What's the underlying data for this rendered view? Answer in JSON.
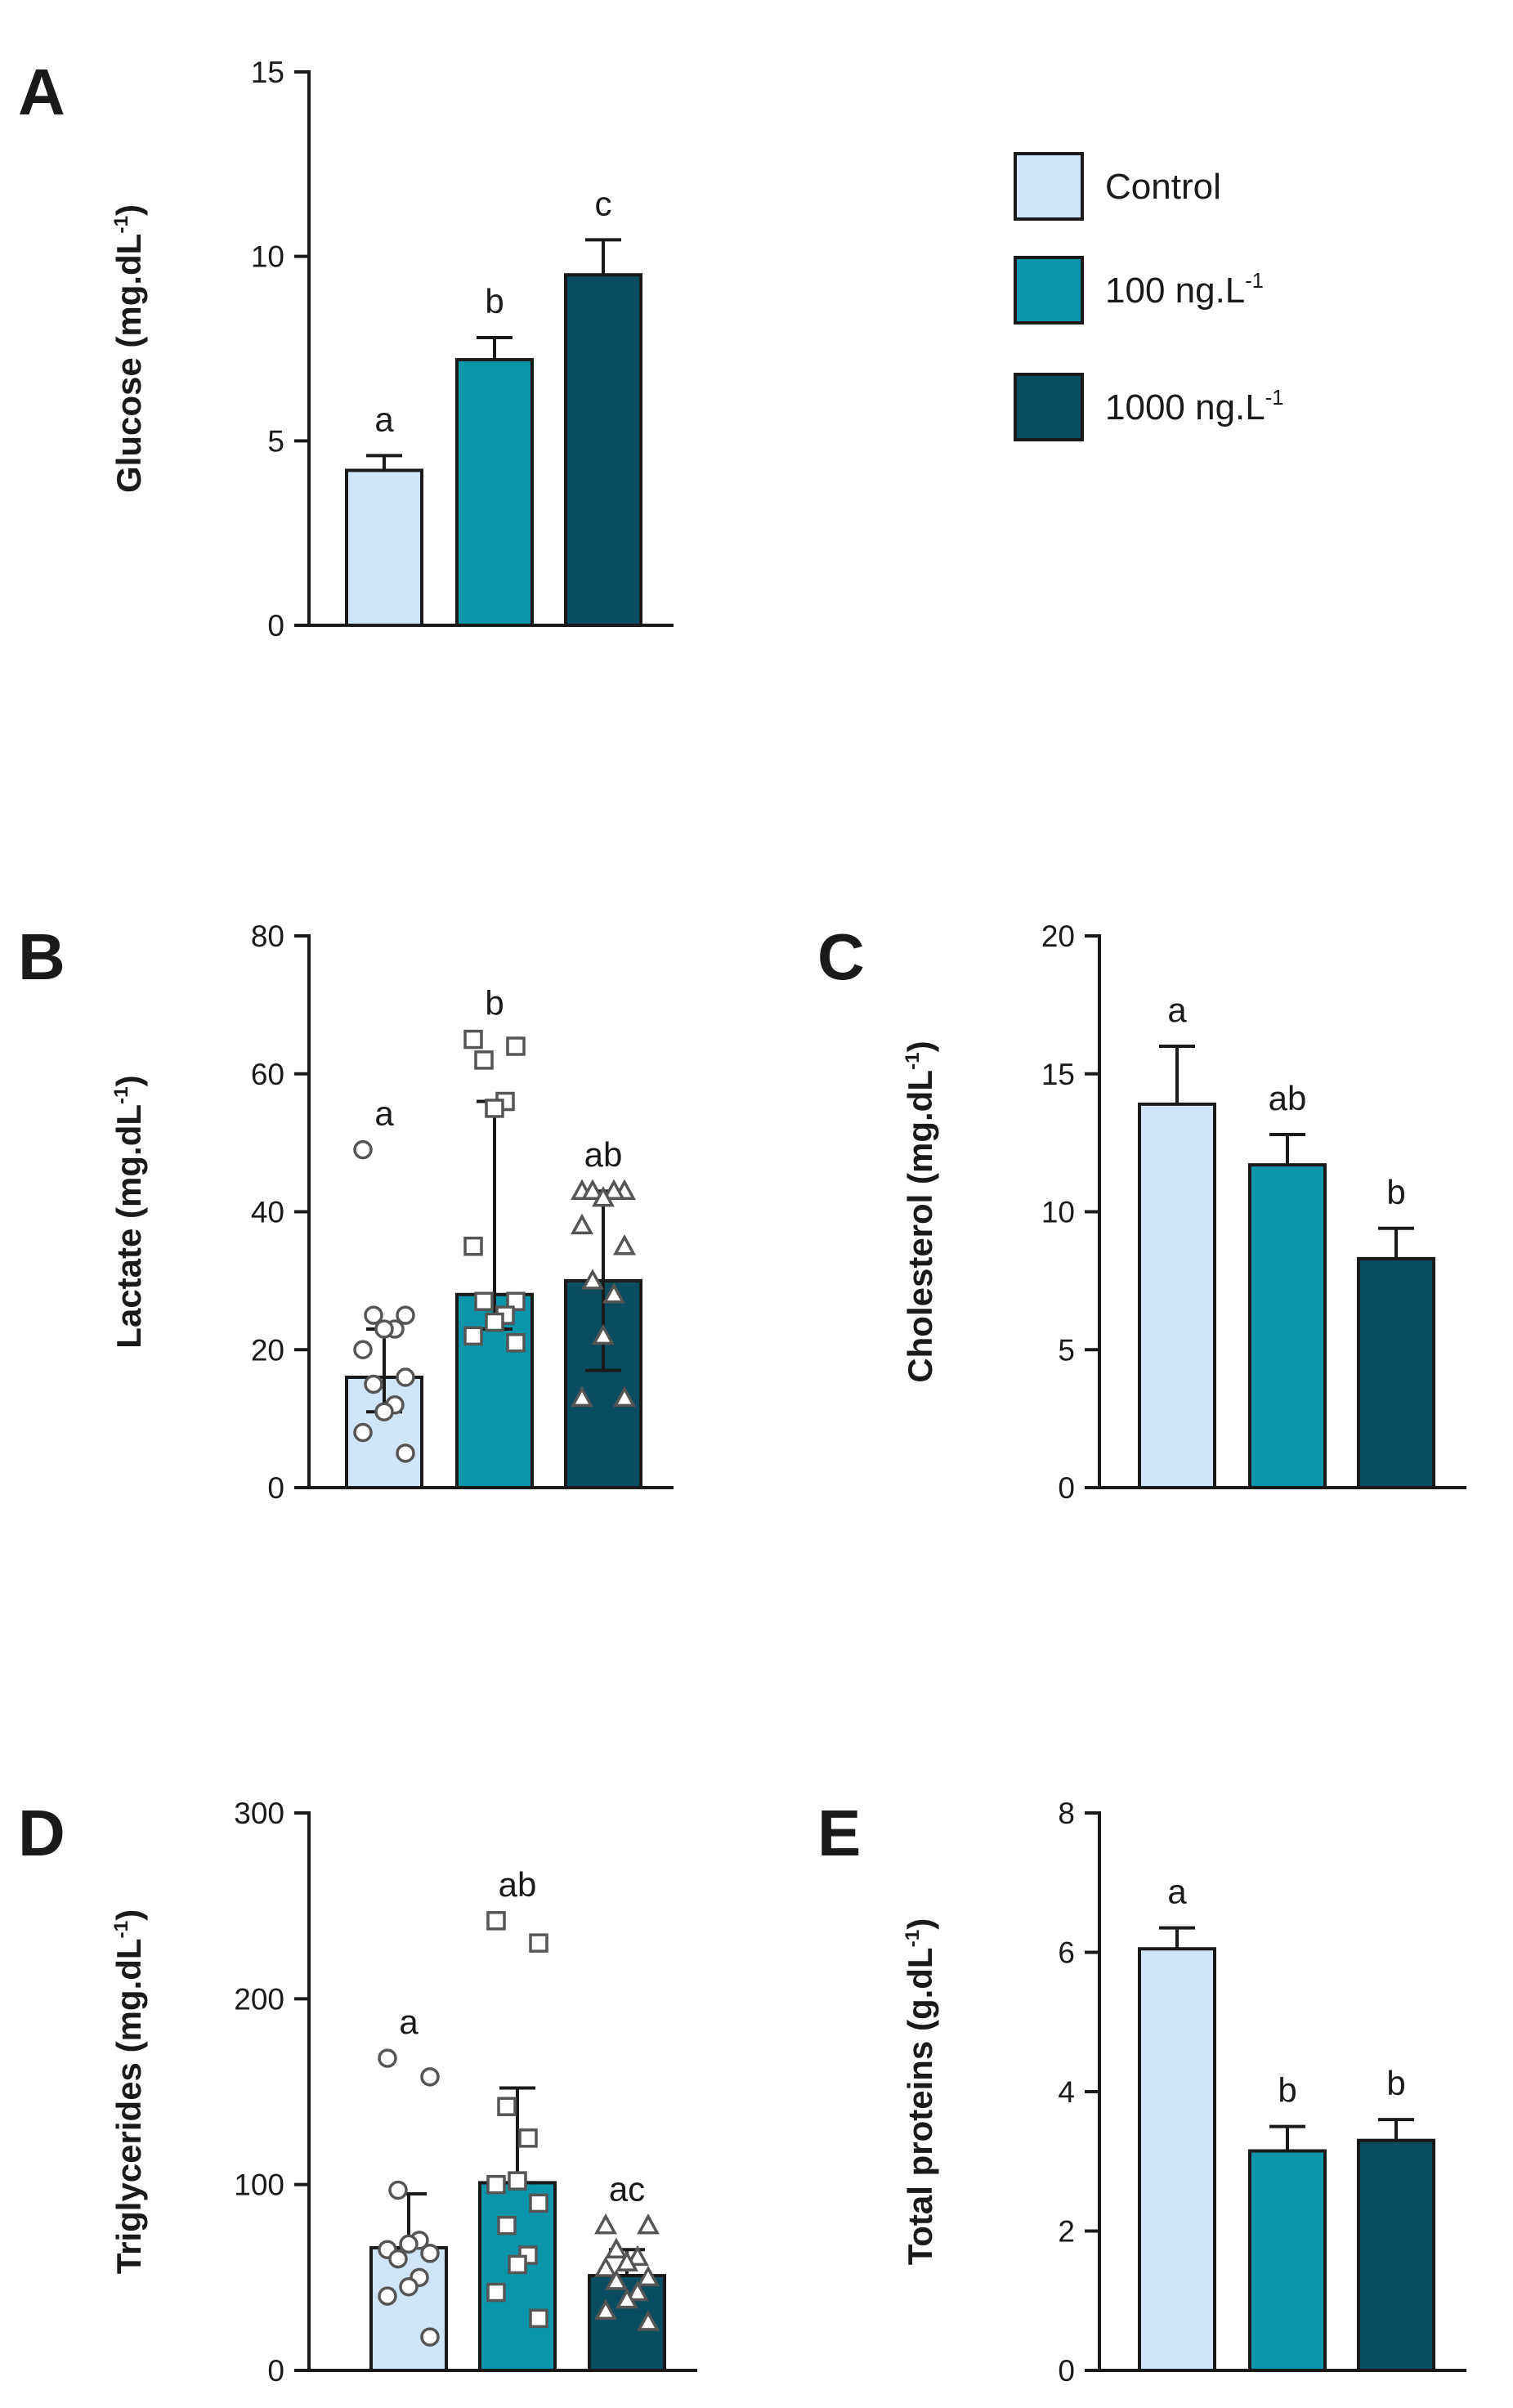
{
  "groups": [
    {
      "name": "Control",
      "color": "#cfe5fa"
    },
    {
      "name": "100 ng.L",
      "color": "#0b95ab"
    },
    {
      "name": "1000 ng.L",
      "color": "#0b4d60"
    }
  ],
  "legend": {
    "entries": [
      {
        "label": "Control",
        "superscript": ""
      },
      {
        "label": "100 ng.L",
        "superscript": "-1"
      },
      {
        "label": "1000 ng.L",
        "superscript": "-1"
      }
    ]
  },
  "chart_data": [
    {
      "panel": "A",
      "type": "bar",
      "ylabel": "Glucose (mg.dL",
      "ylabel_superscript": "-1",
      "ylabel_close": ")",
      "ylim": [
        0,
        15
      ],
      "yticks": [
        0,
        5,
        10,
        15
      ],
      "ytick_labels": [
        "0",
        "5",
        "10",
        "15"
      ],
      "categories": [
        "Control",
        "100 ng.L-1",
        "1000 ng.L-1"
      ],
      "values": [
        4.2,
        7.2,
        9.5
      ],
      "errors": [
        0.4,
        0.6,
        0.95
      ],
      "significance": [
        "a",
        "b",
        "c"
      ],
      "points": null
    },
    {
      "panel": "B",
      "type": "bar",
      "ylabel": "Lactate (mg.dL",
      "ylabel_superscript": "-1",
      "ylabel_close": ")",
      "ylim": [
        0,
        80
      ],
      "yticks": [
        0,
        20,
        40,
        60,
        80
      ],
      "ytick_labels": [
        "0",
        "20",
        "40",
        "60",
        "80"
      ],
      "categories": [
        "Control",
        "100 ng.L-1",
        "1000 ng.L-1"
      ],
      "values": [
        16,
        28,
        30
      ],
      "error_low": [
        11,
        23,
        17
      ],
      "error_high": [
        23,
        56,
        43
      ],
      "significance": [
        "a",
        "b",
        "ab"
      ],
      "points": [
        [
          49,
          25,
          25,
          23,
          23,
          20,
          16,
          15,
          12,
          11,
          8,
          5
        ],
        [
          65,
          64,
          62,
          56,
          55,
          35,
          27,
          27,
          25,
          24,
          22,
          21
        ],
        [
          43,
          43,
          43,
          43,
          42,
          38,
          35,
          30,
          28,
          22,
          13,
          13
        ]
      ],
      "marker_shapes": [
        "circle",
        "square",
        "triangle"
      ]
    },
    {
      "panel": "C",
      "type": "bar",
      "ylabel": "Cholesterol (mg.dL",
      "ylabel_superscript": "-1",
      "ylabel_close": ")",
      "ylim": [
        0,
        20
      ],
      "yticks": [
        0,
        5,
        10,
        15,
        20
      ],
      "ytick_labels": [
        "0",
        "5",
        "10",
        "15",
        "20"
      ],
      "categories": [
        "Control",
        "100 ng.L-1",
        "1000 ng.L-1"
      ],
      "values": [
        13.9,
        11.7,
        8.3
      ],
      "errors": [
        2.1,
        1.1,
        1.1
      ],
      "significance": [
        "a",
        "ab",
        "b"
      ],
      "points": null
    },
    {
      "panel": "D",
      "type": "bar",
      "ylabel": "Triglycerides (mg.dL",
      "ylabel_superscript": "-1",
      "ylabel_close": ")",
      "ylim": [
        0,
        300
      ],
      "yticks": [
        0,
        100,
        200,
        300
      ],
      "ytick_labels": [
        "0",
        "100",
        "200",
        "300"
      ],
      "categories": [
        "Control",
        "100 ng.L-1",
        "1000 ng.L-1"
      ],
      "values": [
        66,
        101,
        51
      ],
      "error_low": [
        66,
        101,
        51
      ],
      "error_high": [
        95,
        152,
        65
      ],
      "significance": [
        "a",
        "ab",
        "ac"
      ],
      "points": [
        [
          168,
          158,
          97,
          70,
          68,
          65,
          63,
          60,
          50,
          45,
          40,
          18
        ],
        [
          242,
          230,
          142,
          125,
          102,
          100,
          90,
          78,
          62,
          57,
          42,
          28
        ],
        [
          78,
          78,
          65,
          61,
          58,
          55,
          50,
          48,
          42,
          38,
          32,
          26
        ]
      ],
      "marker_shapes": [
        "circle",
        "square",
        "triangle"
      ]
    },
    {
      "panel": "E",
      "type": "bar",
      "ylabel": "Total proteins (g.dL",
      "ylabel_superscript": "-1",
      "ylabel_close": ")",
      "ylim": [
        0,
        8
      ],
      "yticks": [
        0,
        2,
        4,
        6,
        8
      ],
      "ytick_labels": [
        "0",
        "2",
        "4",
        "6",
        "8"
      ],
      "categories": [
        "Control",
        "100 ng.L-1",
        "1000 ng.L-1"
      ],
      "values": [
        6.05,
        3.15,
        3.3
      ],
      "errors": [
        0.3,
        0.35,
        0.3
      ],
      "significance": [
        "a",
        "b",
        "b"
      ],
      "points": null
    }
  ]
}
